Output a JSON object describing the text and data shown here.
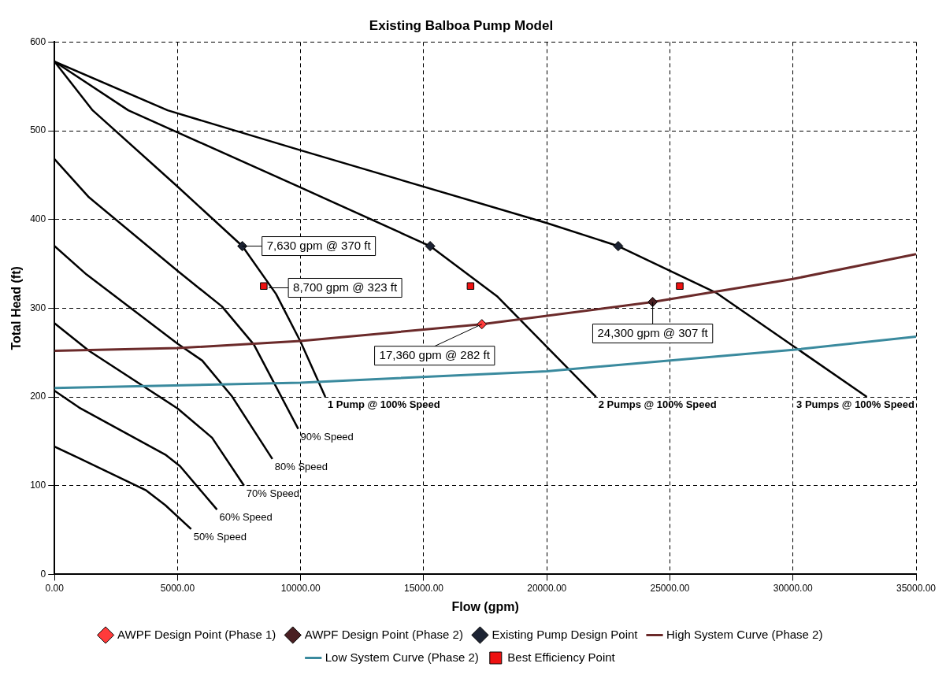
{
  "chart_data": {
    "type": "line",
    "title": "Existing Balboa Pump Model",
    "xlabel": "Flow (gpm)",
    "ylabel": "Total Head (ft)",
    "xlim": [
      0,
      35000
    ],
    "xticks": [
      {
        "value": 0,
        "label": "0.00"
      },
      {
        "value": 5000,
        "label": "5000.00"
      },
      {
        "value": 10000,
        "label": "10000.00"
      },
      {
        "value": 15000,
        "label": "15000.00"
      },
      {
        "value": 20000,
        "label": "20000.00"
      },
      {
        "value": 25000,
        "label": "25000.00"
      },
      {
        "value": 30000,
        "label": "30000.00"
      },
      {
        "value": 35000,
        "label": "35000.00"
      }
    ],
    "ylim": [
      0,
      600
    ],
    "yticks": [
      0,
      100,
      200,
      300,
      400,
      500,
      600
    ],
    "grid": true,
    "legend": "bottom",
    "series": [
      {
        "name": "AWPF Design Point (Phase 1)",
        "type": "scatter",
        "marker": "diamond",
        "color": "#ff3b3b",
        "x": [
          17360
        ],
        "values": [
          282
        ]
      },
      {
        "name": "AWPF Design Point (Phase 2)",
        "type": "scatter",
        "marker": "diamond",
        "color": "#4a1f22",
        "x": [
          24300
        ],
        "values": [
          307
        ]
      },
      {
        "name": "Existing Pump Design Point",
        "type": "scatter",
        "marker": "diamond",
        "color": "#1c2333",
        "x": [
          7630,
          15260,
          22900
        ],
        "values": [
          370,
          370,
          370
        ]
      },
      {
        "name": "High System Curve (Phase 2)",
        "color": "#6b2a2a",
        "x": [
          0,
          5000,
          10000,
          17360,
          24300,
          30000,
          35000
        ],
        "values": [
          252,
          255,
          263,
          282,
          307,
          333,
          361
        ]
      },
      {
        "name": "Low System Curve (Phase 2)",
        "color": "#3a8a9e",
        "x": [
          0,
          10000,
          20000,
          30000,
          35000
        ],
        "values": [
          210,
          216,
          229,
          253,
          268
        ]
      },
      {
        "name": "Best Efficiency Point",
        "type": "scatter",
        "marker": "square",
        "color": "#ee1111",
        "x": [
          8500,
          16900,
          25400
        ],
        "values": [
          325,
          325,
          325
        ]
      },
      {
        "color": "#000000",
        "x": [
          0,
          1550,
          5000,
          7630,
          9000,
          10000,
          11000
        ],
        "values": [
          578,
          523,
          437,
          370,
          316,
          262,
          200
        ]
      },
      {
        "color": "#000000",
        "x": [
          0,
          3000,
          10000,
          15260,
          18000,
          22000
        ],
        "values": [
          578,
          523,
          436,
          370,
          313,
          200
        ]
      },
      {
        "color": "#000000",
        "x": [
          0,
          4600,
          10000,
          20000,
          22900,
          26900,
          33000
        ],
        "values": [
          578,
          523,
          478,
          396,
          370,
          317,
          200
        ]
      },
      {
        "color": "#000000",
        "x": [
          0,
          1400,
          5000,
          6800,
          8100,
          9900
        ],
        "values": [
          468,
          425,
          342,
          302,
          259,
          164
        ]
      },
      {
        "color": "#000000",
        "x": [
          0,
          1300,
          5000,
          6000,
          7200,
          8850
        ],
        "values": [
          370,
          338,
          260,
          241,
          201,
          130
        ]
      },
      {
        "color": "#000000",
        "x": [
          0,
          1400,
          5000,
          6400,
          7700
        ],
        "values": [
          283,
          252,
          187,
          154,
          100
        ]
      },
      {
        "color": "#000000",
        "x": [
          0,
          1000,
          4500,
          5100,
          6600
        ],
        "values": [
          207,
          188,
          135,
          122,
          73
        ]
      },
      {
        "color": "#000000",
        "x": [
          0,
          1000,
          3700,
          4500,
          5550
        ],
        "values": [
          144,
          131,
          95,
          78,
          51
        ]
      }
    ],
    "annotations": [
      {
        "text": "7,630 gpm @ 370 ft",
        "x": 7630,
        "y": 370
      },
      {
        "text": "8,700 gpm @ 323 ft",
        "x": 8700,
        "y": 323
      },
      {
        "text": "17,360 gpm @ 282 ft",
        "x": 17360,
        "y": 282
      },
      {
        "text": "24,300 gpm @ 307 ft",
        "x": 24300,
        "y": 307
      },
      {
        "text": "1 Pump @ 100% Speed",
        "x": 11000,
        "y": 200
      },
      {
        "text": "2 Pumps @ 100% Speed",
        "x": 22000,
        "y": 200
      },
      {
        "text": "3 Pumps @ 100% Speed",
        "x": 33000,
        "y": 200
      },
      {
        "text": "90% Speed",
        "x": 9900,
        "y": 164
      },
      {
        "text": "80% Speed",
        "x": 8850,
        "y": 130
      },
      {
        "text": "70% Speed",
        "x": 7700,
        "y": 100
      },
      {
        "text": "60% Speed",
        "x": 6600,
        "y": 73
      },
      {
        "text": "50% Speed",
        "x": 5550,
        "y": 51
      }
    ]
  }
}
